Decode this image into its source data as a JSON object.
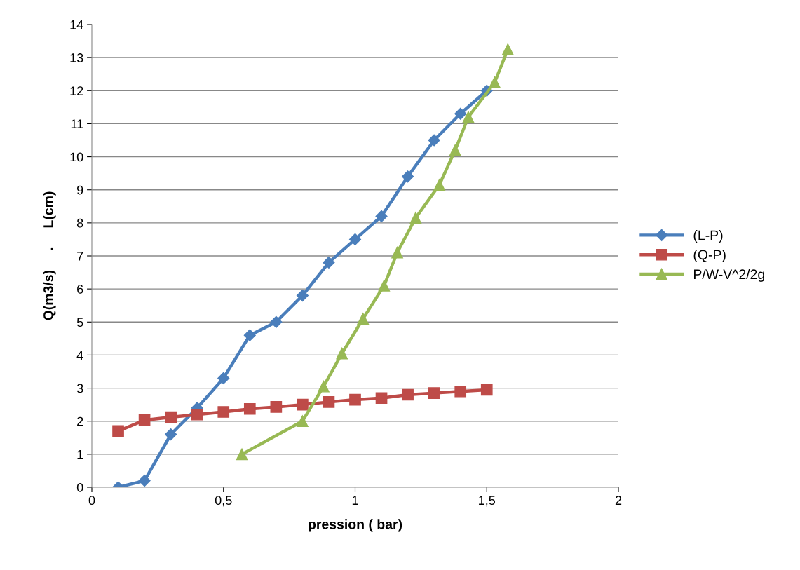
{
  "chart_data": {
    "type": "line",
    "xlabel": "pression ( bar)",
    "ylabel": "Q(m3/s)     .     L(cm)",
    "xlim": [
      0,
      2
    ],
    "xticks": [
      0,
      {
        "value": 0.5,
        "label": "0,5"
      },
      1,
      {
        "value": 1.5,
        "label": "1,5"
      },
      2
    ],
    "ylim": [
      0,
      14
    ],
    "yticks": [
      0,
      1,
      2,
      3,
      4,
      5,
      6,
      7,
      8,
      9,
      10,
      11,
      12,
      13,
      14
    ],
    "grid": "y",
    "legend": "right",
    "line_style": "solid",
    "series": [
      {
        "name": "(L-P)",
        "color": "#4a7ebb",
        "marker": "diamond",
        "x": [
          0.1,
          0.2,
          0.3,
          0.4,
          0.5,
          0.6,
          0.7,
          0.8,
          0.9,
          1.0,
          1.1,
          1.2,
          1.3,
          1.4,
          1.5
        ],
        "values": [
          0,
          0.2,
          1.6,
          2.4,
          3.3,
          4.6,
          5.0,
          5.8,
          6.8,
          7.5,
          8.2,
          9.4,
          10.5,
          11.3,
          12.0
        ]
      },
      {
        "name": "(Q-P)",
        "color": "#be4b48",
        "marker": "square",
        "x": [
          0.1,
          0.2,
          0.3,
          0.4,
          0.5,
          0.6,
          0.7,
          0.8,
          0.9,
          1.0,
          1.1,
          1.2,
          1.3,
          1.4,
          1.5
        ],
        "values": [
          1.7,
          2.03,
          2.12,
          2.2,
          2.28,
          2.37,
          2.43,
          2.5,
          2.58,
          2.65,
          2.7,
          2.8,
          2.85,
          2.9,
          2.95
        ]
      },
      {
        "name": "P/W-V^2/2g",
        "color": "#98b954",
        "marker": "triangle",
        "x": [
          0.57,
          0.8,
          0.88,
          0.95,
          1.03,
          1.11,
          1.16,
          1.23,
          1.32,
          1.38,
          1.43,
          1.53,
          1.58
        ],
        "values": [
          1,
          2,
          3.05,
          4.05,
          5.1,
          6.1,
          7.1,
          8.15,
          9.15,
          10.2,
          11.2,
          12.25,
          13.25
        ]
      }
    ]
  }
}
